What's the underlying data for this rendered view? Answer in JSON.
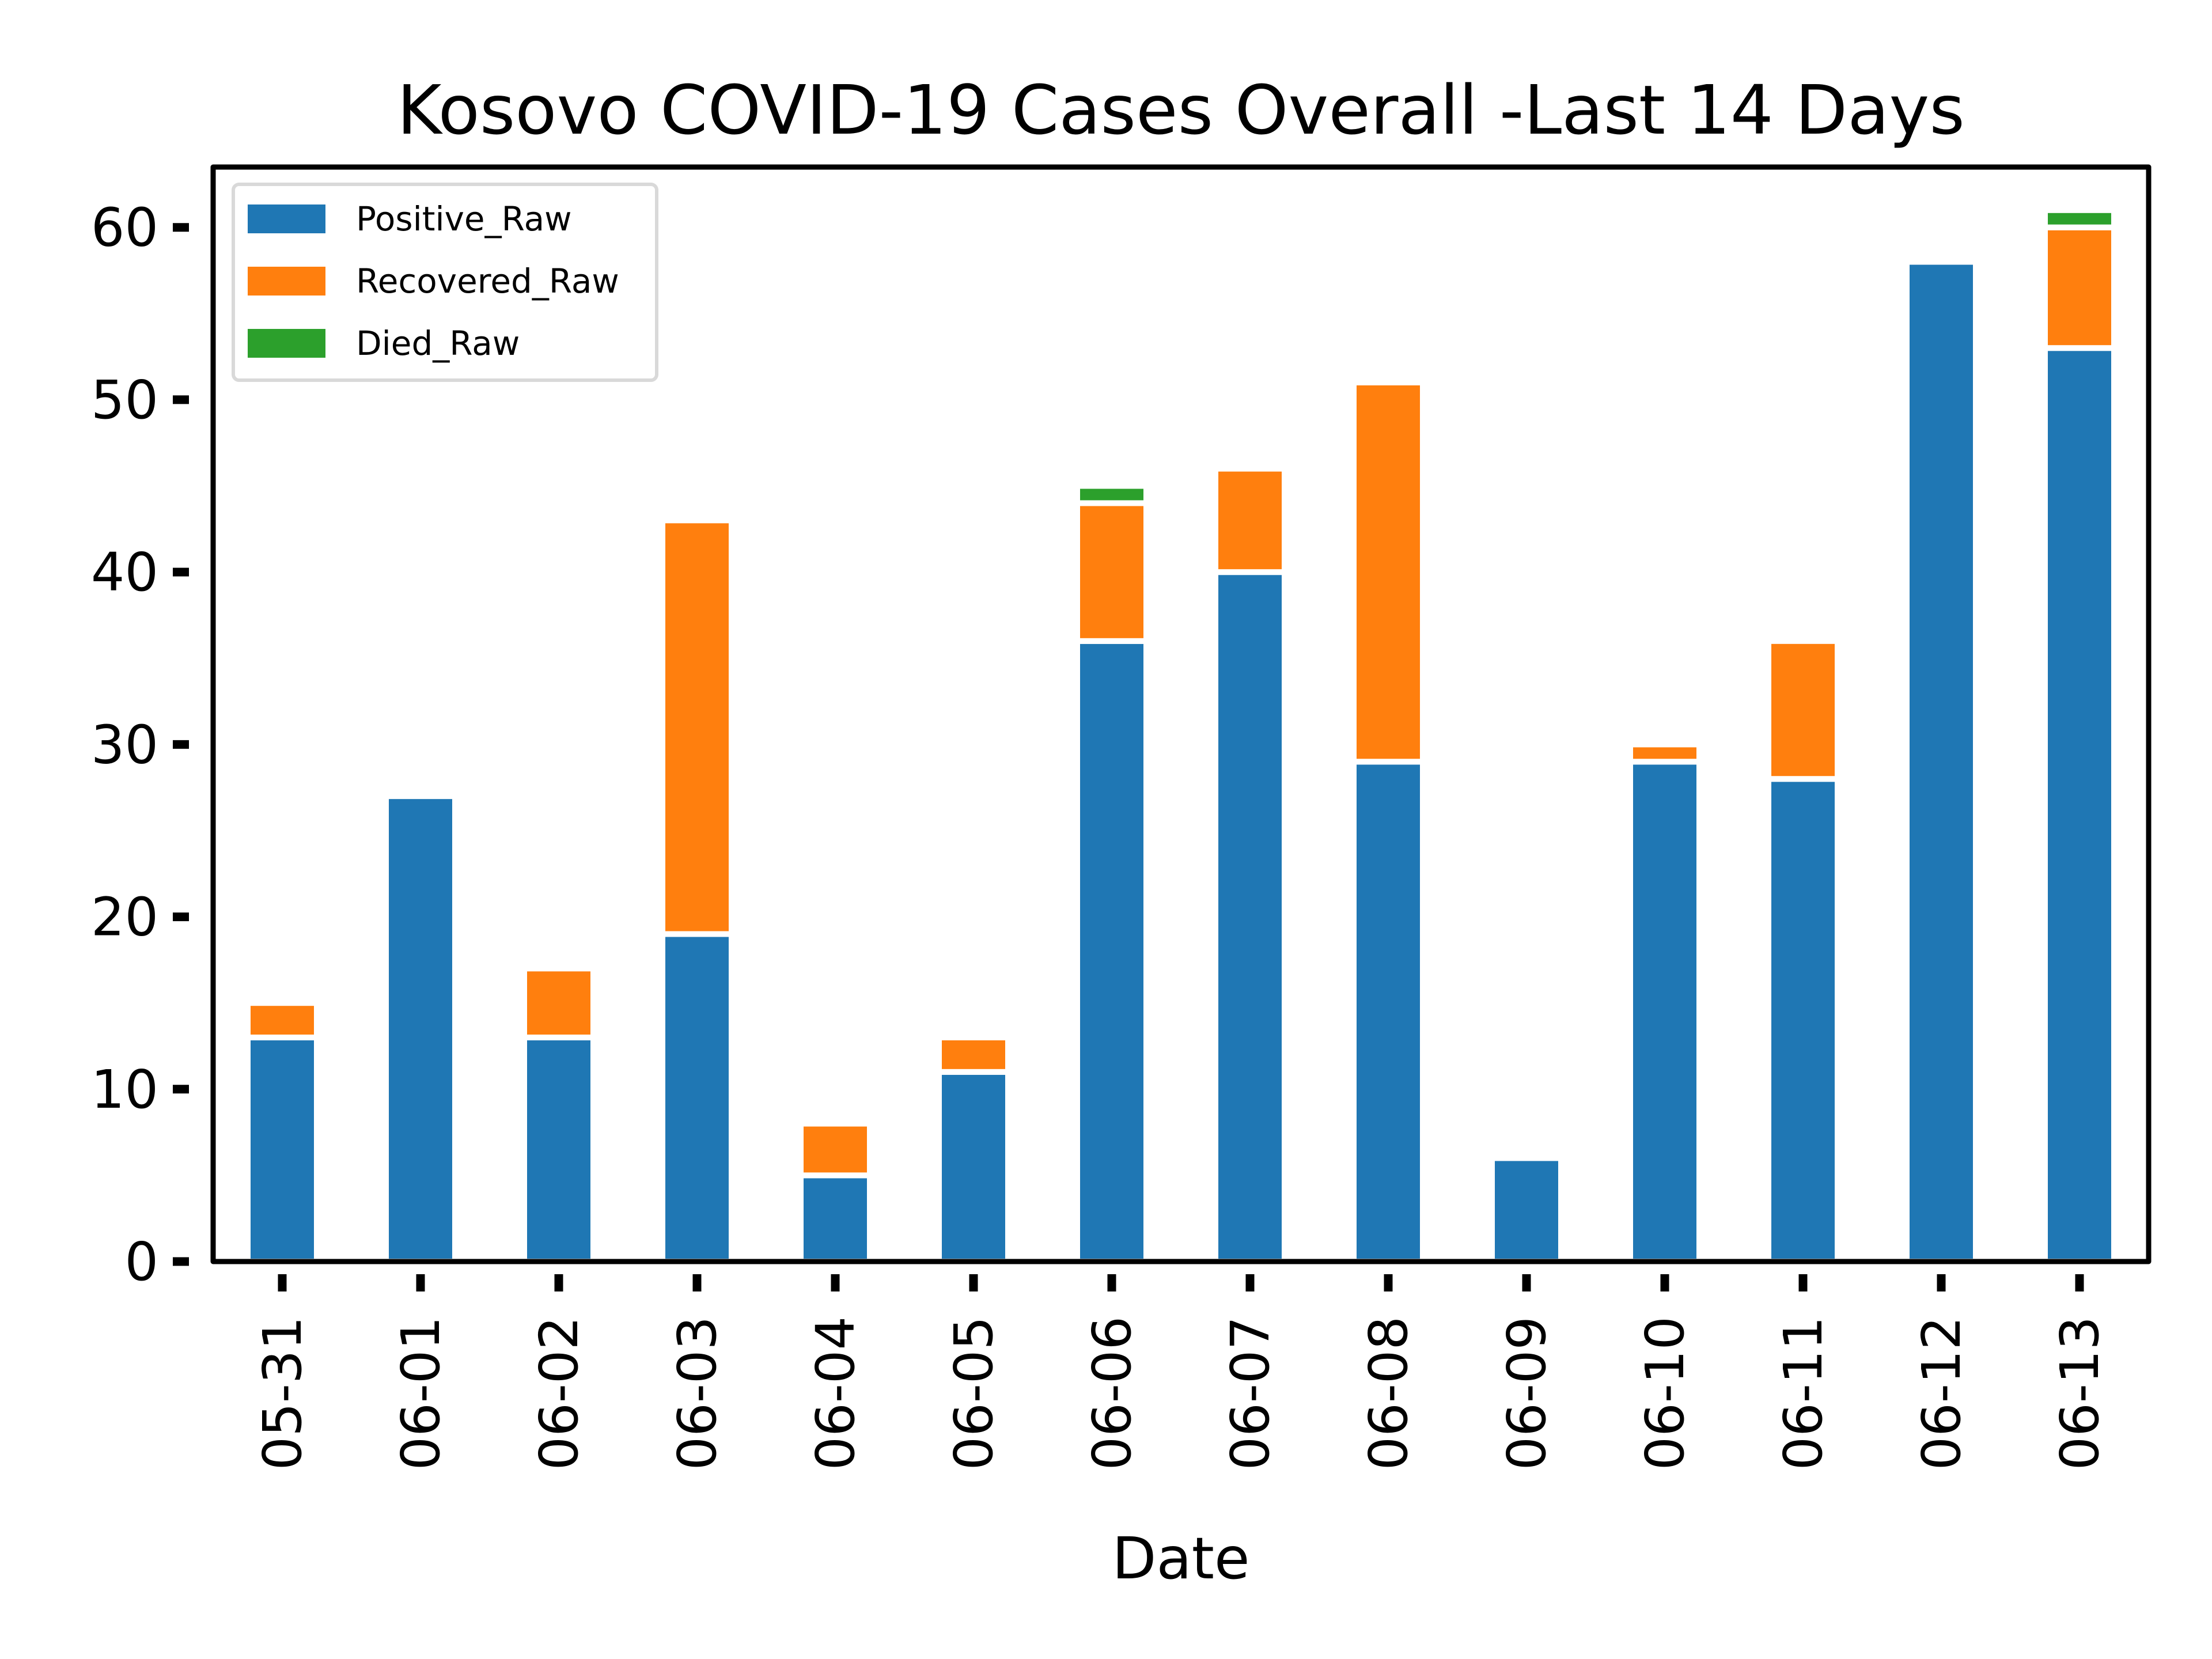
{
  "chart_data": {
    "type": "bar",
    "stacked": true,
    "title": "Kosovo COVID-19 Cases Overall -Last 14 Days",
    "xlabel": "Date",
    "ylabel": "",
    "ylim": [
      0,
      63.5
    ],
    "yticks": [
      0,
      10,
      20,
      30,
      40,
      50,
      60
    ],
    "categories": [
      "05-31",
      "06-01",
      "06-02",
      "06-03",
      "06-04",
      "06-05",
      "06-06",
      "06-07",
      "06-08",
      "06-09",
      "06-10",
      "06-11",
      "06-12",
      "06-13"
    ],
    "series": [
      {
        "name": "Positive_Raw",
        "color": "#1f77b4",
        "values": [
          13,
          27,
          13,
          19,
          5,
          11,
          36,
          40,
          29,
          6,
          29,
          28,
          58,
          53
        ]
      },
      {
        "name": "Recovered_Raw",
        "color": "#ff7f0e",
        "values": [
          2,
          0,
          4,
          24,
          3,
          2,
          8,
          6,
          22,
          0,
          1,
          8,
          0,
          7
        ]
      },
      {
        "name": "Died_Raw",
        "color": "#2ca02c",
        "values": [
          0,
          0,
          0,
          0,
          0,
          0,
          1,
          0,
          0,
          0,
          0,
          0,
          0,
          1
        ]
      }
    ],
    "grid": false,
    "legend_position": "top-left"
  }
}
